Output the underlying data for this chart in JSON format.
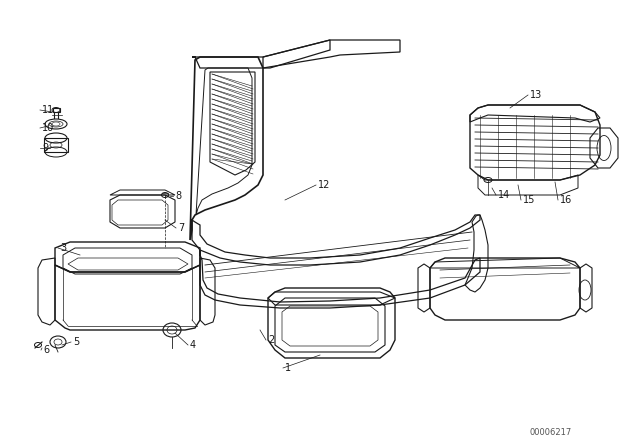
{
  "background_color": "#ffffff",
  "diagram_color": "#1a1a1a",
  "watermark": "00006217",
  "fig_width": 6.4,
  "fig_height": 4.48,
  "dpi": 100
}
